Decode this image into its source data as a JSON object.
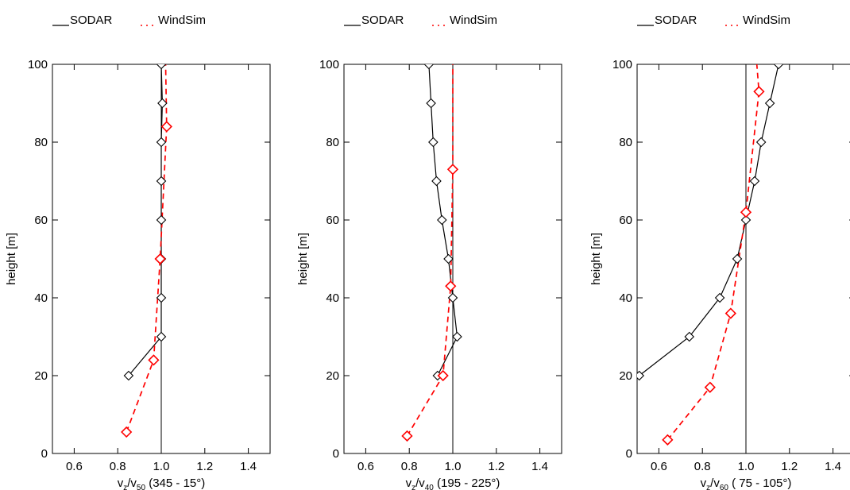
{
  "legend": {
    "sodar_label": "SODAR",
    "windsim_label": "WindSim",
    "sodar_color": "#000000",
    "windsim_color": "#ff0000"
  },
  "chart_data": [
    {
      "type": "line",
      "title": "",
      "xlabel": "v",
      "xlabel_sub1": "z",
      "xlabel_mid": "/v",
      "xlabel_sub2": "50",
      "xlabel_rest": " (345 -  15°)",
      "ylabel": "height [m]",
      "xlim": [
        0.5,
        1.5
      ],
      "ylim": [
        0,
        100
      ],
      "x_ticks": [
        "0.6",
        "0.8",
        "1.0",
        "1.2",
        "1.4"
      ],
      "y_ticks": [
        "0",
        "20",
        "40",
        "60",
        "80",
        "100"
      ],
      "reference_x": 1.0,
      "series": [
        {
          "name": "SODAR",
          "color": "#000000",
          "style": "solid",
          "x": [
            0.85,
            1.0,
            1.0,
            1.0,
            1.0,
            1.0,
            1.0,
            1.005,
            1.0
          ],
          "y": [
            20,
            30,
            40,
            50,
            60,
            70,
            80,
            90,
            100
          ]
        },
        {
          "name": "WindSim",
          "color": "#ff0000",
          "style": "dashed",
          "x": [
            0.84,
            0.965,
            0.995,
            1.025,
            1.02
          ],
          "y": [
            5.5,
            24,
            50,
            84,
            100
          ]
        }
      ],
      "marker_indices": {
        "SODAR": [
          0,
          1,
          2,
          3,
          4,
          5,
          6,
          7,
          8
        ],
        "WindSim": [
          0,
          1,
          2,
          3
        ]
      }
    },
    {
      "type": "line",
      "title": "",
      "xlabel": "v",
      "xlabel_sub1": "z",
      "xlabel_mid": "/v",
      "xlabel_sub2": "40",
      "xlabel_rest": " (195 - 225°)",
      "ylabel": "height [m]",
      "xlim": [
        0.5,
        1.5
      ],
      "ylim": [
        0,
        100
      ],
      "x_ticks": [
        "0.6",
        "0.8",
        "1.0",
        "1.2",
        "1.4"
      ],
      "y_ticks": [
        "0",
        "20",
        "40",
        "60",
        "80",
        "100"
      ],
      "reference_x": 1.0,
      "series": [
        {
          "name": "SODAR",
          "color": "#000000",
          "style": "solid",
          "x": [
            0.93,
            1.02,
            1.0,
            0.98,
            0.95,
            0.925,
            0.91,
            0.9,
            0.89
          ],
          "y": [
            20,
            30,
            40,
            50,
            60,
            70,
            80,
            90,
            100
          ]
        },
        {
          "name": "WindSim",
          "color": "#ff0000",
          "style": "dashed",
          "x": [
            0.79,
            0.955,
            0.99,
            1.0,
            1.0
          ],
          "y": [
            4.5,
            20,
            43,
            73,
            100
          ]
        }
      ],
      "marker_indices": {
        "SODAR": [
          0,
          1,
          2,
          3,
          4,
          5,
          6,
          7,
          8
        ],
        "WindSim": [
          0,
          1,
          2,
          3
        ]
      }
    },
    {
      "type": "line",
      "title": "",
      "xlabel": "v",
      "xlabel_sub1": "z",
      "xlabel_mid": "/v",
      "xlabel_sub2": "60",
      "xlabel_rest": " ( 75 - 105°)",
      "ylabel": "height [m]",
      "xlim": [
        0.5,
        1.5
      ],
      "ylim": [
        0,
        100
      ],
      "x_ticks": [
        "0.6",
        "0.8",
        "1.0",
        "1.2",
        "1.4"
      ],
      "y_ticks": [
        "0",
        "20",
        "40",
        "60",
        "80",
        "100"
      ],
      "reference_x": 1.0,
      "series": [
        {
          "name": "SODAR",
          "color": "#000000",
          "style": "solid",
          "x": [
            0.51,
            0.74,
            0.88,
            0.96,
            1.0,
            1.04,
            1.07,
            1.11,
            1.15
          ],
          "y": [
            20,
            30,
            40,
            50,
            60,
            70,
            80,
            90,
            100
          ]
        },
        {
          "name": "WindSim",
          "color": "#ff0000",
          "style": "dashed",
          "x": [
            0.64,
            0.835,
            0.93,
            1.0,
            1.06,
            1.05
          ],
          "y": [
            3.5,
            17,
            36,
            62,
            93,
            100
          ]
        }
      ],
      "marker_indices": {
        "SODAR": [
          0,
          1,
          2,
          3,
          4,
          5,
          6,
          7,
          8
        ],
        "WindSim": [
          0,
          1,
          2,
          3,
          4
        ]
      }
    }
  ]
}
